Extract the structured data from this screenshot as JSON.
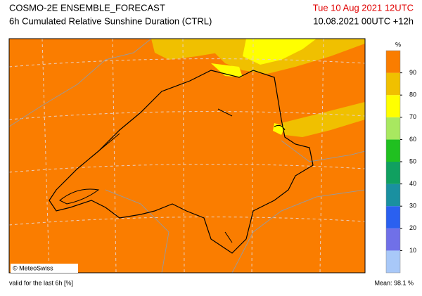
{
  "header": {
    "title": "COSMO-2E ENSEMBLE_FORECAST",
    "subtitle": "6h Cumulated Relative Sunshine Duration (CTRL)",
    "date": "Tue 10 Aug 2021 12UTC",
    "run": "10.08.2021 00UTC +12h"
  },
  "map": {
    "credit": "© MeteoSwiss"
  },
  "colorbar": {
    "unit": "%",
    "range": [
      0,
      100
    ],
    "ticks": [
      10,
      20,
      30,
      40,
      50,
      60,
      70,
      80,
      90
    ],
    "colors": [
      "#a8c8f8",
      "#7070e8",
      "#2a60f0",
      "#1a90a0",
      "#10a060",
      "#20c020",
      "#a8e860",
      "#ffff00",
      "#f0c000",
      "#fa7d00"
    ]
  },
  "footer": {
    "validity": "valid for the last 6h [%]",
    "mean": "Mean:  98.1 %"
  }
}
